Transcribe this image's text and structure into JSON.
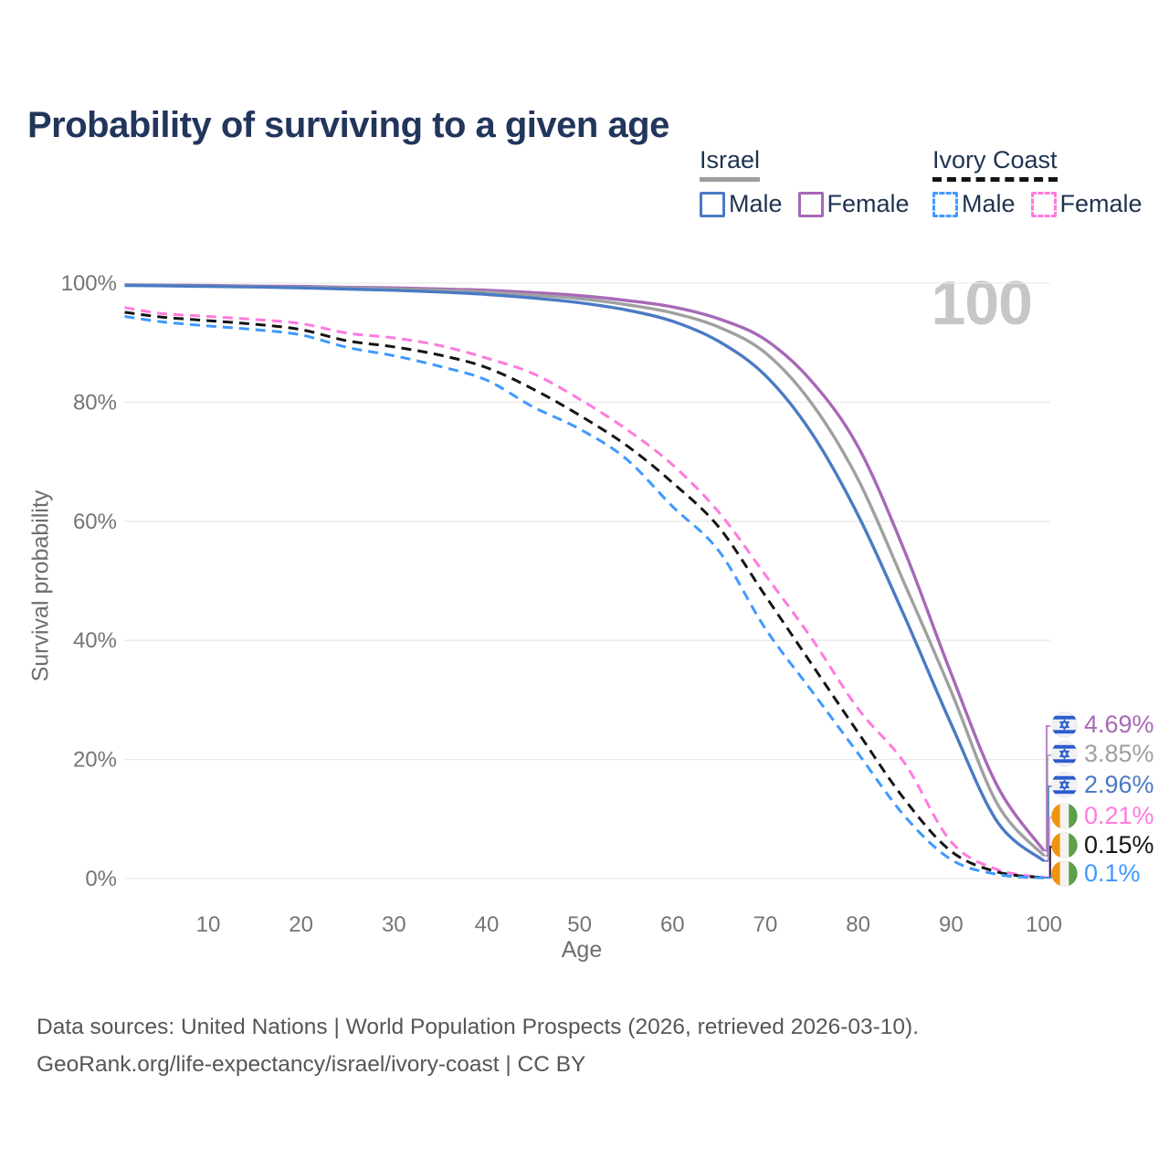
{
  "title": "Probability of surviving to a given age",
  "age_counter": "100",
  "legend": {
    "groups": [
      {
        "country": "Israel",
        "line_style": "solid",
        "underline_color": "#9e9e9e",
        "items": [
          {
            "label": "Male",
            "color": "#4a7ac4",
            "dash": false
          },
          {
            "label": "Female",
            "color": "#a868b6",
            "dash": false
          }
        ]
      },
      {
        "country": "Ivory Coast",
        "line_style": "dashed",
        "underline_color": "#141414",
        "items": [
          {
            "label": "Male",
            "color": "#3f99ff",
            "dash": true
          },
          {
            "label": "Female",
            "color": "#ff7ade",
            "dash": true
          }
        ]
      }
    ]
  },
  "chart_data": {
    "type": "line",
    "title": "Probability of surviving to a given age",
    "xlabel": "Age",
    "ylabel": "Survival probability",
    "xlim": [
      0,
      100
    ],
    "ylim": [
      0,
      100
    ],
    "grid": "horizontal",
    "x_ticks": [
      10,
      20,
      30,
      40,
      50,
      60,
      70,
      80,
      90,
      100
    ],
    "y_ticks": [
      0,
      20,
      40,
      60,
      80,
      100
    ],
    "y_tick_suffix": "%",
    "x": [
      1,
      5,
      10,
      15,
      20,
      25,
      30,
      35,
      40,
      45,
      50,
      55,
      60,
      65,
      70,
      75,
      80,
      85,
      90,
      95,
      100
    ],
    "series": [
      {
        "id": "israel-female",
        "name": "Israel Female",
        "country": "Israel",
        "sex": "female",
        "color": "#a868b6",
        "dash": false,
        "end_label": "4.69%",
        "end_value": 4.69,
        "flag": "israel",
        "y": [
          99.7,
          99.65,
          99.6,
          99.5,
          99.45,
          99.3,
          99.2,
          99.0,
          98.8,
          98.4,
          97.9,
          97.1,
          96.0,
          94.0,
          90.5,
          83.5,
          72.5,
          55.0,
          34.5,
          15.5,
          4.69
        ]
      },
      {
        "id": "israel-both",
        "name": "Israel Both sexes",
        "country": "Israel",
        "sex": "both",
        "color": "#a0a0a0",
        "dash": false,
        "end_label": "3.85%",
        "end_value": 3.85,
        "flag": "israel",
        "y": [
          99.65,
          99.6,
          99.5,
          99.4,
          99.3,
          99.2,
          99.0,
          98.8,
          98.5,
          98.0,
          97.4,
          96.4,
          95.0,
          92.6,
          88.3,
          79.8,
          67.0,
          49.5,
          31.5,
          12.5,
          3.85
        ]
      },
      {
        "id": "israel-male",
        "name": "Israel Male",
        "country": "Israel",
        "sex": "male",
        "color": "#4a7ac4",
        "dash": false,
        "end_label": "2.96%",
        "end_value": 2.96,
        "flag": "israel",
        "y": [
          99.6,
          99.55,
          99.45,
          99.35,
          99.2,
          99.0,
          98.8,
          98.5,
          98.1,
          97.5,
          96.7,
          95.5,
          93.6,
          90.2,
          84.5,
          74.8,
          61.0,
          44.0,
          26.0,
          9.5,
          2.96
        ]
      },
      {
        "id": "ivory-coast-female",
        "name": "Ivory Coast Female",
        "country": "Ivory Coast",
        "sex": "female",
        "color": "#ff7ade",
        "dash": true,
        "end_label": "0.21%",
        "end_value": 0.21,
        "flag": "ivory-coast",
        "y": [
          95.9,
          94.9,
          94.4,
          93.9,
          93.2,
          91.6,
          90.8,
          89.5,
          87.4,
          84.8,
          80.5,
          75.5,
          69.5,
          61.5,
          51.0,
          40.3,
          28.5,
          19.4,
          6.2,
          1.5,
          0.21
        ]
      },
      {
        "id": "ivory-coast-both",
        "name": "Ivory Coast Both sexes",
        "country": "Ivory Coast",
        "sex": "both",
        "color": "#141414",
        "dash": true,
        "end_label": "0.15%",
        "end_value": 0.15,
        "flag": "ivory-coast",
        "y": [
          95.1,
          94.3,
          93.7,
          93.1,
          92.2,
          90.3,
          89.3,
          87.9,
          85.8,
          82.2,
          77.8,
          72.8,
          66.5,
          59.0,
          47.5,
          36.0,
          24.5,
          13.3,
          4.6,
          1.1,
          0.15
        ]
      },
      {
        "id": "ivory-coast-male",
        "name": "Ivory Coast Male",
        "country": "Ivory Coast",
        "sex": "male",
        "color": "#3f99ff",
        "dash": true,
        "end_label": "0.1%",
        "end_value": 0.1,
        "flag": "ivory-coast",
        "y": [
          94.4,
          93.5,
          92.8,
          92.2,
          91.3,
          89.2,
          87.8,
          86.0,
          83.7,
          79.2,
          75.5,
          70.5,
          62.5,
          55.0,
          42.0,
          31.5,
          21.0,
          10.5,
          3.2,
          0.7,
          0.1
        ]
      }
    ]
  },
  "footer": {
    "line1": "Data sources: United Nations | World Population Prospects (2026, retrieved 2026-03-10).",
    "line2": "GeoRank.org/life-expectancy/israel/ivory-coast | CC BY"
  }
}
